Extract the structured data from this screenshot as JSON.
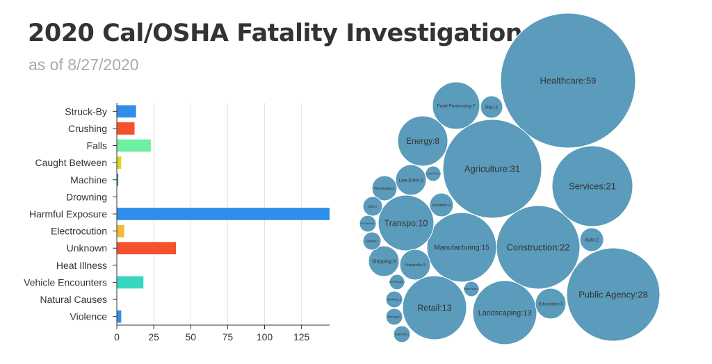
{
  "header": {
    "title": "2020 Cal/OSHA Fatality Investigations",
    "subtitle": "as of 8/27/2020"
  },
  "chart_data": [
    {
      "type": "bar",
      "orientation": "horizontal",
      "categories": [
        "Struck-By",
        "Crushing",
        "Falls",
        "Caught Between",
        "Machine",
        "Drowning",
        "Harmful Exposure",
        "Electrocution",
        "Unknown",
        "Heat Illness",
        "Vehicle Encounters",
        "Natural Causes",
        "Violence"
      ],
      "values": [
        13,
        12,
        23,
        3,
        1,
        0,
        144,
        5,
        40,
        0,
        18,
        0,
        3
      ],
      "colors": [
        "#2f8fe8",
        "#f4512c",
        "#6df0a2",
        "#d7d921",
        "#2f9c86",
        "#2f9c86",
        "#2f8fe8",
        "#f5b83d",
        "#f4512c",
        "#f4512c",
        "#37d7c0",
        "#37d7c0",
        "#2f8fe8"
      ],
      "x_ticks": [
        0,
        25,
        50,
        75,
        100,
        125
      ],
      "xlim": [
        0,
        144
      ],
      "grid": true
    },
    {
      "type": "bubble",
      "color": "#5b9bbb",
      "label_color": "#333333",
      "items": [
        {
          "label": "Healthcare:59",
          "value": 59
        },
        {
          "label": "Agriculture:31",
          "value": 31
        },
        {
          "label": "Public Agency:28",
          "value": 28
        },
        {
          "label": "Construction:22",
          "value": 22
        },
        {
          "label": "Services:21",
          "value": 21
        },
        {
          "label": "Manufacturing:15",
          "value": 15
        },
        {
          "label": "Retail:13",
          "value": 13
        },
        {
          "label": "Landscaping:13",
          "value": 13
        },
        {
          "label": "Transpo:10",
          "value": 10
        },
        {
          "label": "Energy:8",
          "value": 8
        },
        {
          "label": "Food Processing:7",
          "value": 7
        },
        {
          "label": "Law Enfor:3",
          "value": 3
        },
        {
          "label": "Shipping:3",
          "value": 3
        },
        {
          "label": "Hospitality:3",
          "value": 3
        },
        {
          "label": "Education:3",
          "value": 3
        },
        {
          "label": "Rec:2",
          "value": 2
        },
        {
          "label": "Maritime:2",
          "value": 2
        },
        {
          "label": "Auto:2",
          "value": 2
        },
        {
          "label": "Wholesale:1",
          "value": 1
        },
        {
          "label": "Info:1",
          "value": 1
        },
        {
          "label": "Staffing:1",
          "value": 1
        },
        {
          "label": "Moving:1",
          "value": 1
        },
        {
          "label": "Mining:1",
          "value": 1
        },
        {
          "label": "Garmet:1",
          "value": 1
        },
        {
          "label": "Social Servs:1",
          "value": 1
        },
        {
          "label": "Civil Service:1",
          "value": 1
        },
        {
          "label": "Steel Design:1",
          "value": 1
        },
        {
          "label": "Waste Mgmt:1",
          "value": 1
        }
      ]
    }
  ]
}
